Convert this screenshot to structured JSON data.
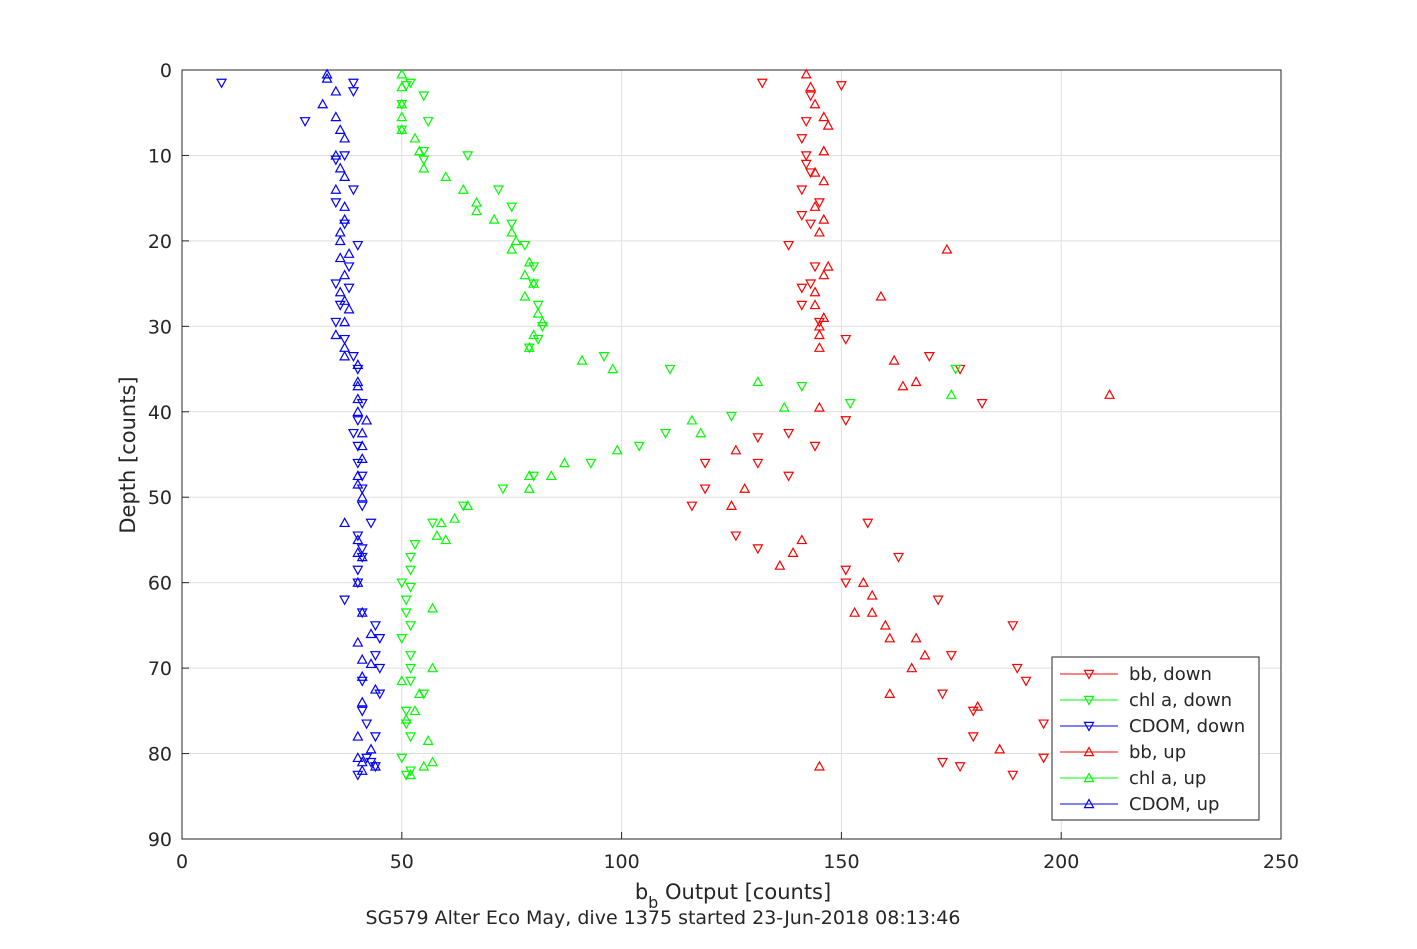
{
  "figure": {
    "xlabel": "b",
    "xlabel_sub": "b",
    "xlabel_rest": " Output [counts]",
    "ylabel": "Depth [counts]",
    "title": "SG579 Alter Eco May, dive 1375 started 23-Jun-2018 08:13:46"
  },
  "chart_data": {
    "type": "scatter",
    "xlim": [
      0,
      250
    ],
    "ylim": [
      0,
      90
    ],
    "y_reversed": true,
    "grid": true,
    "x_ticks": [
      0,
      50,
      100,
      150,
      200,
      250
    ],
    "y_ticks": [
      0,
      10,
      20,
      30,
      40,
      50,
      60,
      70,
      80,
      90
    ],
    "legend_position": "bottom-right",
    "series": [
      {
        "name": "bb, down",
        "color": "#ff0000",
        "marker": "triangle-down",
        "points": [
          [
            132,
            1.5
          ],
          [
            150,
            1.8
          ],
          [
            143,
            3
          ],
          [
            142,
            6
          ],
          [
            141,
            8
          ],
          [
            142,
            10
          ],
          [
            142,
            11
          ],
          [
            143,
            12
          ],
          [
            141,
            14
          ],
          [
            145,
            15.5
          ],
          [
            141,
            17
          ],
          [
            143,
            18
          ],
          [
            138,
            20.5
          ],
          [
            144,
            23
          ],
          [
            143,
            25
          ],
          [
            141,
            25.5
          ],
          [
            141,
            27.5
          ],
          [
            145,
            29.5
          ],
          [
            151,
            31.5
          ],
          [
            170,
            33.5
          ],
          [
            177,
            35
          ],
          [
            182,
            39
          ],
          [
            151,
            41
          ],
          [
            138,
            42.5
          ],
          [
            131,
            43
          ],
          [
            144,
            44
          ],
          [
            131,
            46
          ],
          [
            119,
            46
          ],
          [
            138,
            47.5
          ],
          [
            119,
            49
          ],
          [
            116,
            51
          ],
          [
            156,
            53
          ],
          [
            126,
            54.5
          ],
          [
            131,
            56
          ],
          [
            163,
            57
          ],
          [
            151,
            58.5
          ],
          [
            151,
            60
          ],
          [
            172,
            62
          ],
          [
            189,
            65
          ],
          [
            175,
            68.5
          ],
          [
            190,
            70
          ],
          [
            192,
            71.5
          ],
          [
            173,
            73
          ],
          [
            180,
            75
          ],
          [
            196,
            76.5
          ],
          [
            180,
            78
          ],
          [
            196,
            80.5
          ],
          [
            173,
            81
          ],
          [
            177,
            81.5
          ],
          [
            189,
            82.5
          ]
        ]
      },
      {
        "name": "chl a, down",
        "color": "#00ff00",
        "marker": "triangle-down",
        "points": [
          [
            52,
            1.5
          ],
          [
            51,
            1.8
          ],
          [
            55,
            3
          ],
          [
            50,
            4
          ],
          [
            56,
            6
          ],
          [
            50,
            7
          ],
          [
            55,
            9.5
          ],
          [
            65,
            10
          ],
          [
            55,
            10.5
          ],
          [
            72,
            14
          ],
          [
            75,
            16
          ],
          [
            75,
            18
          ],
          [
            78,
            20.5
          ],
          [
            80,
            23
          ],
          [
            80,
            25
          ],
          [
            81,
            27.5
          ],
          [
            82,
            30
          ],
          [
            81,
            31.5
          ],
          [
            79,
            32.5
          ],
          [
            96,
            33.5
          ],
          [
            111,
            35
          ],
          [
            141,
            37
          ],
          [
            176,
            35
          ],
          [
            152,
            39
          ],
          [
            125,
            40.5
          ],
          [
            110,
            42.5
          ],
          [
            104,
            44
          ],
          [
            93,
            46
          ],
          [
            80,
            47.5
          ],
          [
            73,
            49
          ],
          [
            64,
            51
          ],
          [
            57,
            53
          ],
          [
            53,
            55.5
          ],
          [
            52,
            57
          ],
          [
            52,
            58.5
          ],
          [
            50,
            60
          ],
          [
            52,
            60.5
          ],
          [
            51,
            62
          ],
          [
            51,
            63.5
          ],
          [
            52,
            65
          ],
          [
            50,
            66.5
          ],
          [
            52,
            68.5
          ],
          [
            52,
            70
          ],
          [
            52,
            71.5
          ],
          [
            55,
            73
          ],
          [
            51,
            75
          ],
          [
            51,
            76.5
          ],
          [
            52,
            78
          ],
          [
            50,
            80.5
          ],
          [
            52,
            82
          ],
          [
            51,
            82.5
          ]
        ]
      },
      {
        "name": "CDOM, down",
        "color": "#0000ff",
        "marker": "triangle-down",
        "points": [
          [
            9,
            1.5
          ],
          [
            39,
            1.5
          ],
          [
            39,
            2.5
          ],
          [
            28,
            6
          ],
          [
            37,
            10
          ],
          [
            35,
            10.5
          ],
          [
            39,
            14
          ],
          [
            35,
            15.5
          ],
          [
            37,
            18
          ],
          [
            40,
            20.5
          ],
          [
            38,
            23
          ],
          [
            35,
            25
          ],
          [
            38,
            25.5
          ],
          [
            36,
            27.5
          ],
          [
            35,
            29.5
          ],
          [
            37,
            31.5
          ],
          [
            39,
            33.5
          ],
          [
            40,
            35
          ],
          [
            41,
            39
          ],
          [
            40,
            41
          ],
          [
            39,
            42.5
          ],
          [
            40,
            44
          ],
          [
            40,
            46
          ],
          [
            41,
            47.5
          ],
          [
            41,
            49
          ],
          [
            41,
            51
          ],
          [
            43,
            53
          ],
          [
            40,
            54.5
          ],
          [
            41,
            56
          ],
          [
            41,
            57
          ],
          [
            40,
            58.5
          ],
          [
            40,
            60
          ],
          [
            37,
            62
          ],
          [
            41,
            63.5
          ],
          [
            44,
            65
          ],
          [
            45,
            66.5
          ],
          [
            44,
            68.5
          ],
          [
            45,
            70
          ],
          [
            41,
            71.5
          ],
          [
            45,
            73
          ],
          [
            41,
            75
          ],
          [
            42,
            76.5
          ],
          [
            44,
            78
          ],
          [
            42,
            80.5
          ],
          [
            43,
            81
          ],
          [
            44,
            81.5
          ],
          [
            40,
            82.5
          ]
        ]
      },
      {
        "name": "bb, up",
        "color": "#ff0000",
        "marker": "triangle-up",
        "points": [
          [
            142,
            0.5
          ],
          [
            143,
            2
          ],
          [
            144,
            4
          ],
          [
            146,
            5.5
          ],
          [
            147,
            6.5
          ],
          [
            146,
            9.5
          ],
          [
            144,
            12
          ],
          [
            146,
            13
          ],
          [
            144,
            16
          ],
          [
            146,
            17.5
          ],
          [
            145,
            19
          ],
          [
            174,
            21
          ],
          [
            147,
            23
          ],
          [
            146,
            24
          ],
          [
            144,
            26
          ],
          [
            159,
            26.5
          ],
          [
            144,
            27.5
          ],
          [
            146,
            29
          ],
          [
            145,
            30
          ],
          [
            145,
            31
          ],
          [
            145,
            32.5
          ],
          [
            162,
            34
          ],
          [
            164,
            37
          ],
          [
            167,
            36.5
          ],
          [
            211,
            38
          ],
          [
            145,
            39.5
          ],
          [
            126,
            44.5
          ],
          [
            128,
            49
          ],
          [
            125,
            51
          ],
          [
            141,
            55
          ],
          [
            139,
            56.5
          ],
          [
            136,
            58
          ],
          [
            155,
            60
          ],
          [
            157,
            61.5
          ],
          [
            153,
            63.5
          ],
          [
            157,
            63.5
          ],
          [
            160,
            65
          ],
          [
            161,
            66.5
          ],
          [
            167,
            66.5
          ],
          [
            169,
            68.5
          ],
          [
            166,
            70
          ],
          [
            161,
            73
          ],
          [
            181,
            74.5
          ],
          [
            186,
            79.5
          ],
          [
            145,
            81.5
          ]
        ]
      },
      {
        "name": "chl a, up",
        "color": "#00ff00",
        "marker": "triangle-up",
        "points": [
          [
            50,
            0.5
          ],
          [
            50,
            2
          ],
          [
            50,
            4
          ],
          [
            50,
            5.5
          ],
          [
            50,
            7
          ],
          [
            53,
            8
          ],
          [
            54,
            9.5
          ],
          [
            55,
            11.5
          ],
          [
            60,
            12.5
          ],
          [
            64,
            14
          ],
          [
            67,
            15.5
          ],
          [
            67,
            16.5
          ],
          [
            71,
            17.5
          ],
          [
            75,
            19
          ],
          [
            76,
            20
          ],
          [
            75,
            21
          ],
          [
            79,
            22.5
          ],
          [
            78,
            24
          ],
          [
            80,
            25
          ],
          [
            78,
            26.5
          ],
          [
            81,
            28.5
          ],
          [
            82,
            29.5
          ],
          [
            80,
            31
          ],
          [
            79,
            32.5
          ],
          [
            91,
            34
          ],
          [
            98,
            35
          ],
          [
            131,
            36.5
          ],
          [
            137,
            39.5
          ],
          [
            175,
            38
          ],
          [
            116,
            41
          ],
          [
            118,
            42.5
          ],
          [
            99,
            44.5
          ],
          [
            87,
            46
          ],
          [
            84,
            47.5
          ],
          [
            79,
            47.5
          ],
          [
            79,
            49
          ],
          [
            65,
            51
          ],
          [
            62,
            52.5
          ],
          [
            59,
            53
          ],
          [
            58,
            54.5
          ],
          [
            60,
            55
          ],
          [
            57,
            63
          ],
          [
            57,
            70
          ],
          [
            50,
            71.5
          ],
          [
            54,
            73
          ],
          [
            53,
            75
          ],
          [
            51,
            76
          ],
          [
            56,
            78.5
          ],
          [
            57,
            81
          ],
          [
            55,
            81.5
          ],
          [
            52,
            82.5
          ]
        ]
      },
      {
        "name": "CDOM, up",
        "color": "#0000ff",
        "marker": "triangle-up",
        "points": [
          [
            33,
            0.5
          ],
          [
            33,
            1
          ],
          [
            35,
            2.5
          ],
          [
            32,
            4
          ],
          [
            35,
            5.5
          ],
          [
            36,
            7
          ],
          [
            37,
            8
          ],
          [
            35,
            10
          ],
          [
            36,
            11.5
          ],
          [
            37,
            12.5
          ],
          [
            35,
            14
          ],
          [
            37,
            16
          ],
          [
            37,
            17.5
          ],
          [
            36,
            19
          ],
          [
            36,
            20
          ],
          [
            38,
            21.5
          ],
          [
            36,
            22
          ],
          [
            37,
            24
          ],
          [
            36,
            26
          ],
          [
            37,
            27
          ],
          [
            38,
            28
          ],
          [
            37,
            29.5
          ],
          [
            35,
            31
          ],
          [
            37,
            32.5
          ],
          [
            37,
            33.5
          ],
          [
            40,
            34.5
          ],
          [
            40,
            36.5
          ],
          [
            40,
            37
          ],
          [
            40,
            38.5
          ],
          [
            40,
            40
          ],
          [
            42,
            41
          ],
          [
            41,
            42.5
          ],
          [
            41,
            44
          ],
          [
            41,
            45.5
          ],
          [
            40,
            47.5
          ],
          [
            40,
            48.5
          ],
          [
            41,
            50
          ],
          [
            37,
            53
          ],
          [
            40,
            55
          ],
          [
            40,
            56.5
          ],
          [
            41,
            57
          ],
          [
            40,
            60
          ],
          [
            41,
            63.5
          ],
          [
            40,
            67
          ],
          [
            43,
            66
          ],
          [
            41,
            69
          ],
          [
            43,
            69.5
          ],
          [
            41,
            71
          ],
          [
            44,
            72.5
          ],
          [
            41,
            74
          ],
          [
            40,
            78
          ],
          [
            43,
            79.5
          ],
          [
            40,
            80.5
          ],
          [
            41,
            81
          ],
          [
            44,
            81.5
          ],
          [
            41,
            82
          ]
        ]
      }
    ]
  }
}
